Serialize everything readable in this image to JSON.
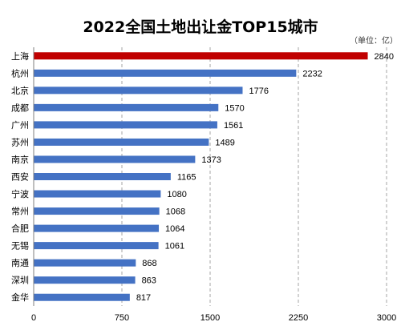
{
  "chart_data": {
    "type": "bar",
    "orientation": "horizontal",
    "title": "2022全国土地出让金TOP15城市",
    "unit_label": "（单位：亿）",
    "categories": [
      "上海",
      "杭州",
      "北京",
      "成都",
      "广州",
      "苏州",
      "南京",
      "西安",
      "宁波",
      "常州",
      "合肥",
      "无锡",
      "南通",
      "深圳",
      "金华"
    ],
    "values": [
      2840,
      2232,
      1776,
      1570,
      1561,
      1489,
      1373,
      1165,
      1080,
      1068,
      1064,
      1061,
      868,
      863,
      817
    ],
    "xlim": [
      0,
      3000
    ],
    "xticks": [
      "0",
      "750",
      "1500",
      "2250",
      "3000"
    ],
    "grid": true,
    "highlight_index": 0,
    "colors": {
      "bar": "#4472c4",
      "highlight": "#c00000",
      "grid": "#a6a6a6",
      "axis": "#7f7f7f"
    }
  }
}
